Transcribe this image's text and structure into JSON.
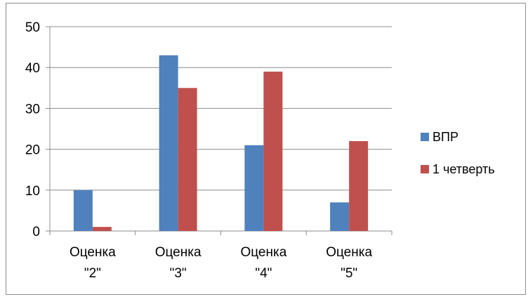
{
  "chart_data": {
    "type": "bar",
    "title": "",
    "xlabel": "",
    "ylabel": "",
    "categories": [
      [
        "Оценка",
        "\"2\""
      ],
      [
        "Оценка",
        "\"3\""
      ],
      [
        "Оценка",
        "\"4\""
      ],
      [
        "Оценка",
        "\"5\""
      ]
    ],
    "series": [
      {
        "name": "ВПР",
        "color": "#4F81BD",
        "values": [
          10,
          43,
          21,
          7
        ]
      },
      {
        "name": "1 четверть",
        "color": "#C0504D",
        "values": [
          1,
          35,
          39,
          22
        ]
      }
    ],
    "ylim": [
      0,
      50
    ],
    "yticks": [
      0,
      10,
      20,
      30,
      40,
      50
    ],
    "grid": true,
    "legend_position": "right"
  }
}
